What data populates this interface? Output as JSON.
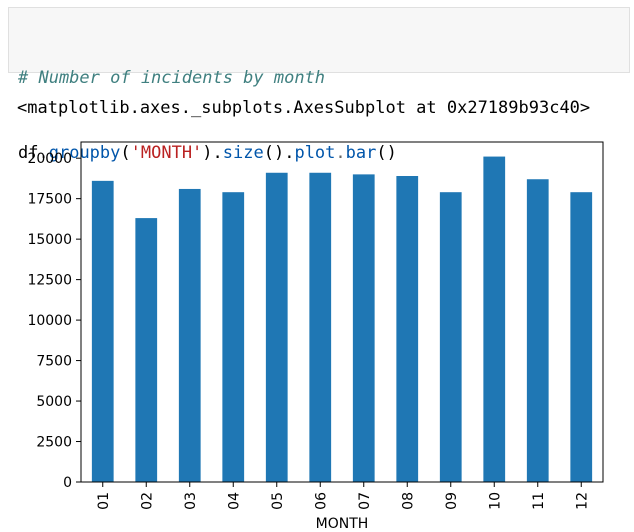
{
  "code_cell": {
    "comment": "# Number of incidents by month",
    "code_tokens": [
      {
        "text": "df",
        "cls": "tk-name"
      },
      {
        "text": ".",
        "cls": "tk-op"
      },
      {
        "text": "groupby",
        "cls": "tk-attr"
      },
      {
        "text": "(",
        "cls": "tk-paren"
      },
      {
        "text": "'MONTH'",
        "cls": "tk-str"
      },
      {
        "text": ").",
        "cls": "tk-paren"
      },
      {
        "text": "size",
        "cls": "tk-attr"
      },
      {
        "text": "().",
        "cls": "tk-paren"
      },
      {
        "text": "plot",
        "cls": "tk-attr"
      },
      {
        "text": ".",
        "cls": "tk-op"
      },
      {
        "text": "bar",
        "cls": "tk-attr"
      },
      {
        "text": "()",
        "cls": "tk-paren"
      }
    ]
  },
  "output": {
    "repr": "<matplotlib.axes._subplots.AxesSubplot at 0x27189b93c40>"
  },
  "colors": {
    "bar": "#1f77b4",
    "axis": "#000000"
  },
  "chart_data": {
    "type": "bar",
    "categories": [
      "01",
      "02",
      "03",
      "04",
      "05",
      "06",
      "07",
      "08",
      "09",
      "10",
      "11",
      "12"
    ],
    "values": [
      18600,
      16300,
      18100,
      17900,
      19100,
      19100,
      19000,
      18900,
      17900,
      20100,
      18700,
      17900
    ],
    "xlabel": "MONTH",
    "ylabel": "",
    "ylim": [
      0,
      21000
    ],
    "yticks": [
      0,
      2500,
      5000,
      7500,
      10000,
      12500,
      15000,
      17500,
      20000
    ],
    "grid": false
  }
}
